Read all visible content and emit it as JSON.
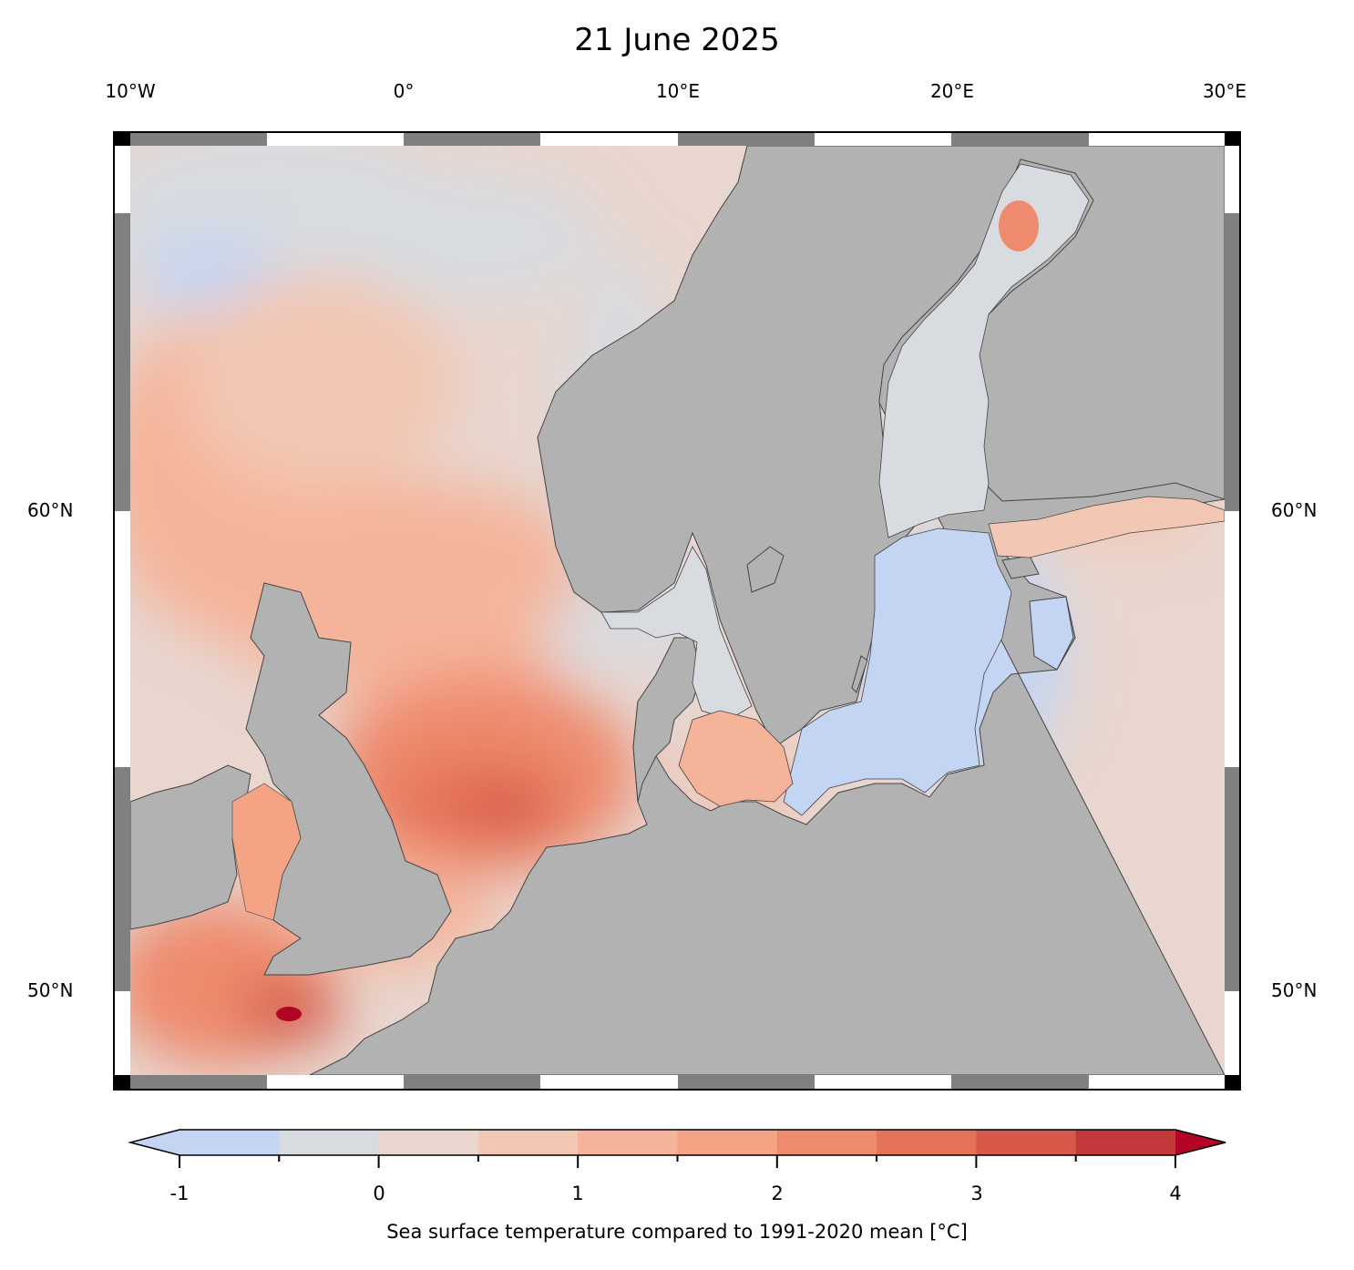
{
  "title": "21 June 2025",
  "map": {
    "lon_labels": [
      "10°W",
      "0°",
      "10°E",
      "20°E",
      "30°E"
    ],
    "lat_labels": [
      "60°N",
      "50°N"
    ],
    "colors": {
      "land": "#b2b2b2",
      "frame_dark": "#808080",
      "coast": "#444444"
    }
  },
  "colorbar": {
    "ticks": [
      "-1",
      "0",
      "1",
      "2",
      "3",
      "4"
    ],
    "label": "Sea surface temperature compared to 1991-2020 mean [°C]",
    "levels": [
      -1.5,
      -1,
      -0.5,
      0,
      0.5,
      1,
      1.5,
      2,
      2.5,
      3,
      3.5,
      4
    ],
    "colors": [
      "#c4d5f3",
      "#d8dbe0",
      "#e8d6cf",
      "#f2c7b3",
      "#f5b49a",
      "#f4a384",
      "#ee8b6e",
      "#e5735a",
      "#d55a4a",
      "#c4373a",
      "#b40426"
    ]
  }
}
